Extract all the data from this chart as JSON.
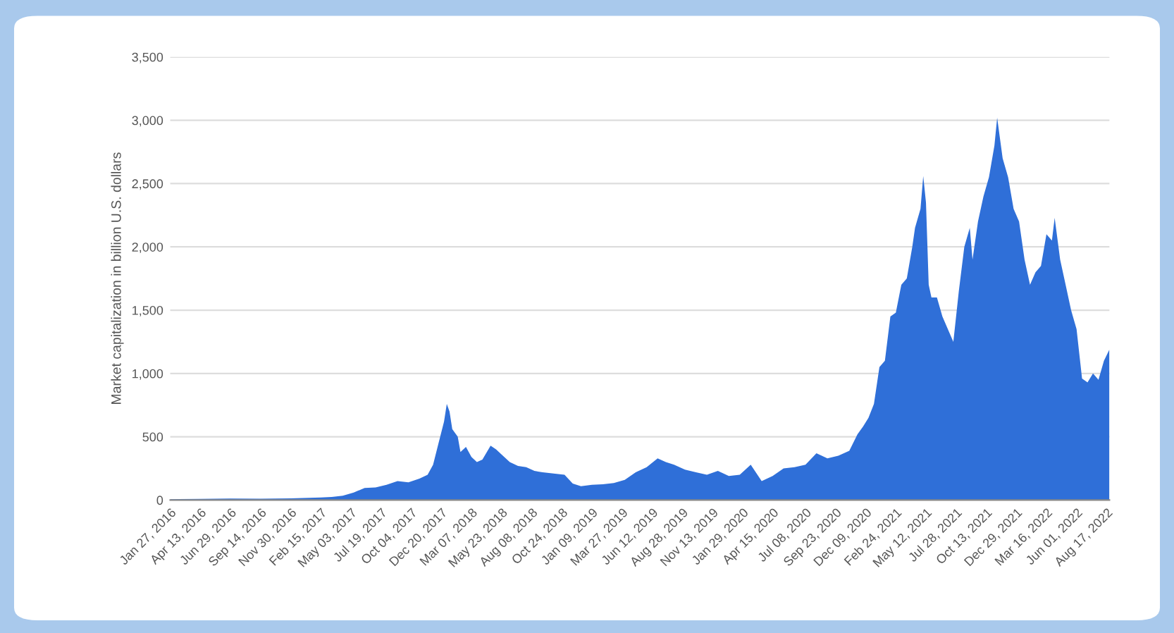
{
  "chart_data": {
    "type": "area",
    "ylabel": "Market capitalization in billion U.S. dollars",
    "color": "#2f6fd8",
    "grid": "y",
    "x": [
      "2016-01-27",
      "2016-04-13",
      "2016-06-29",
      "2016-09-14",
      "2016-11-30",
      "2017-02-15",
      "2017-03-15",
      "2017-04-12",
      "2017-05-10",
      "2017-06-07",
      "2017-07-05",
      "2017-08-02",
      "2017-08-30",
      "2017-09-27",
      "2017-10-25",
      "2017-11-15",
      "2017-11-29",
      "2017-12-13",
      "2017-12-27",
      "2018-01-03",
      "2018-01-10",
      "2018-01-17",
      "2018-01-31",
      "2018-02-07",
      "2018-02-21",
      "2018-03-07",
      "2018-03-21",
      "2018-04-04",
      "2018-04-25",
      "2018-05-09",
      "2018-05-23",
      "2018-06-13",
      "2018-07-04",
      "2018-07-25",
      "2018-08-15",
      "2018-09-05",
      "2018-10-03",
      "2018-10-31",
      "2018-11-21",
      "2018-12-12",
      "2019-01-09",
      "2019-02-06",
      "2019-03-06",
      "2019-04-03",
      "2019-05-01",
      "2019-05-29",
      "2019-06-26",
      "2019-07-17",
      "2019-08-07",
      "2019-09-04",
      "2019-10-02",
      "2019-10-30",
      "2019-11-27",
      "2019-12-25",
      "2020-01-22",
      "2020-02-19",
      "2020-03-18",
      "2020-04-15",
      "2020-05-13",
      "2020-06-10",
      "2020-07-08",
      "2020-08-05",
      "2020-09-02",
      "2020-09-30",
      "2020-10-28",
      "2020-11-18",
      "2020-12-02",
      "2020-12-16",
      "2020-12-30",
      "2021-01-13",
      "2021-01-27",
      "2021-02-10",
      "2021-02-24",
      "2021-03-10",
      "2021-03-24",
      "2021-04-07",
      "2021-04-14",
      "2021-04-28",
      "2021-05-05",
      "2021-05-12",
      "2021-05-19",
      "2021-05-26",
      "2021-06-09",
      "2021-06-23",
      "2021-07-07",
      "2021-07-21",
      "2021-08-04",
      "2021-08-18",
      "2021-09-01",
      "2021-09-08",
      "2021-09-22",
      "2021-10-06",
      "2021-10-20",
      "2021-11-03",
      "2021-11-10",
      "2021-11-24",
      "2021-12-08",
      "2021-12-22",
      "2022-01-05",
      "2022-01-19",
      "2022-02-02",
      "2022-02-16",
      "2022-03-02",
      "2022-03-16",
      "2022-03-30",
      "2022-04-06",
      "2022-04-20",
      "2022-05-04",
      "2022-05-18",
      "2022-06-01",
      "2022-06-15",
      "2022-06-29",
      "2022-07-13",
      "2022-07-27",
      "2022-08-10",
      "2022-08-24"
    ],
    "values": [
      7,
      9,
      12,
      11,
      13,
      20,
      25,
      35,
      60,
      95,
      100,
      120,
      150,
      140,
      170,
      200,
      280,
      450,
      620,
      760,
      700,
      560,
      500,
      380,
      420,
      340,
      300,
      320,
      430,
      400,
      360,
      300,
      270,
      260,
      230,
      220,
      210,
      200,
      130,
      110,
      120,
      125,
      135,
      160,
      220,
      260,
      330,
      300,
      280,
      240,
      220,
      200,
      230,
      190,
      200,
      280,
      150,
      190,
      250,
      260,
      280,
      370,
      330,
      350,
      390,
      520,
      580,
      650,
      760,
      1050,
      1100,
      1450,
      1480,
      1700,
      1750,
      2000,
      2150,
      2300,
      2560,
      2350,
      1700,
      1600,
      1600,
      1450,
      1350,
      1250,
      1650,
      2000,
      2150,
      1900,
      2200,
      2400,
      2550,
      2800,
      3020,
      2700,
      2550,
      2300,
      2200,
      1900,
      1700,
      1800,
      1850,
      2100,
      2050,
      2230,
      1900,
      1700,
      1500,
      1350,
      960,
      930,
      1000,
      950,
      1100,
      1190
    ],
    "xlim": [
      "2016-01-27",
      "2022-08-24"
    ],
    "ylim": [
      0,
      3500
    ],
    "yticks": [
      0,
      500,
      {
        "value": 1000,
        "label": "1,000"
      },
      {
        "value": 1500,
        "label": "1,500"
      },
      {
        "value": 2000,
        "label": "2,000"
      },
      {
        "value": 2500,
        "label": "2,500"
      },
      {
        "value": 3000,
        "label": "3,000"
      },
      {
        "value": 3500,
        "label": "3,500"
      }
    ],
    "xticks": [
      {
        "value": "2016-01-27",
        "label": "Jan 27, 2016"
      },
      {
        "value": "2016-04-13",
        "label": "Apr 13, 2016"
      },
      {
        "value": "2016-06-29",
        "label": "Jun 29, 2016"
      },
      {
        "value": "2016-09-14",
        "label": "Sep 14, 2016"
      },
      {
        "value": "2016-11-30",
        "label": "Nov 30, 2016"
      },
      {
        "value": "2017-02-15",
        "label": "Feb 15, 2017"
      },
      {
        "value": "2017-05-03",
        "label": "May 03, 2017"
      },
      {
        "value": "2017-07-19",
        "label": "Jul 19, 2017"
      },
      {
        "value": "2017-10-04",
        "label": "Oct 04, 2017"
      },
      {
        "value": "2017-12-20",
        "label": "Dec 20, 2017"
      },
      {
        "value": "2018-03-07",
        "label": "Mar 07, 2018"
      },
      {
        "value": "2018-05-23",
        "label": "May 23, 2018"
      },
      {
        "value": "2018-08-08",
        "label": "Aug 08, 2018"
      },
      {
        "value": "2018-10-24",
        "label": "Oct 24, 2018"
      },
      {
        "value": "2019-01-09",
        "label": "Jan 09, 2019"
      },
      {
        "value": "2019-03-27",
        "label": "Mar 27, 2019"
      },
      {
        "value": "2019-06-12",
        "label": "Jun 12, 2019"
      },
      {
        "value": "2019-08-28",
        "label": "Aug 28, 2019"
      },
      {
        "value": "2019-11-13",
        "label": "Nov 13, 2019"
      },
      {
        "value": "2020-01-29",
        "label": "Jan 29, 2020"
      },
      {
        "value": "2020-04-15",
        "label": "Apr 15, 2020"
      },
      {
        "value": "2020-07-08",
        "label": "Jul 08, 2020"
      },
      {
        "value": "2020-09-23",
        "label": "Sep 23, 2020"
      },
      {
        "value": "2020-12-09",
        "label": "Dec 09, 2020"
      },
      {
        "value": "2021-02-24",
        "label": "Feb 24, 2021"
      },
      {
        "value": "2021-05-12",
        "label": "May 12, 2021"
      },
      {
        "value": "2021-07-28",
        "label": "Jul 28, 2021"
      },
      {
        "value": "2021-10-13",
        "label": "Oct 13, 2021"
      },
      {
        "value": "2021-12-29",
        "label": "Dec 29, 2021"
      },
      {
        "value": "2022-03-16",
        "label": "Mar 16, 2022"
      },
      {
        "value": "2022-06-01",
        "label": "Jun 01, 2022"
      },
      {
        "value": "2022-08-17",
        "label": "Aug 17, 2022"
      }
    ]
  }
}
